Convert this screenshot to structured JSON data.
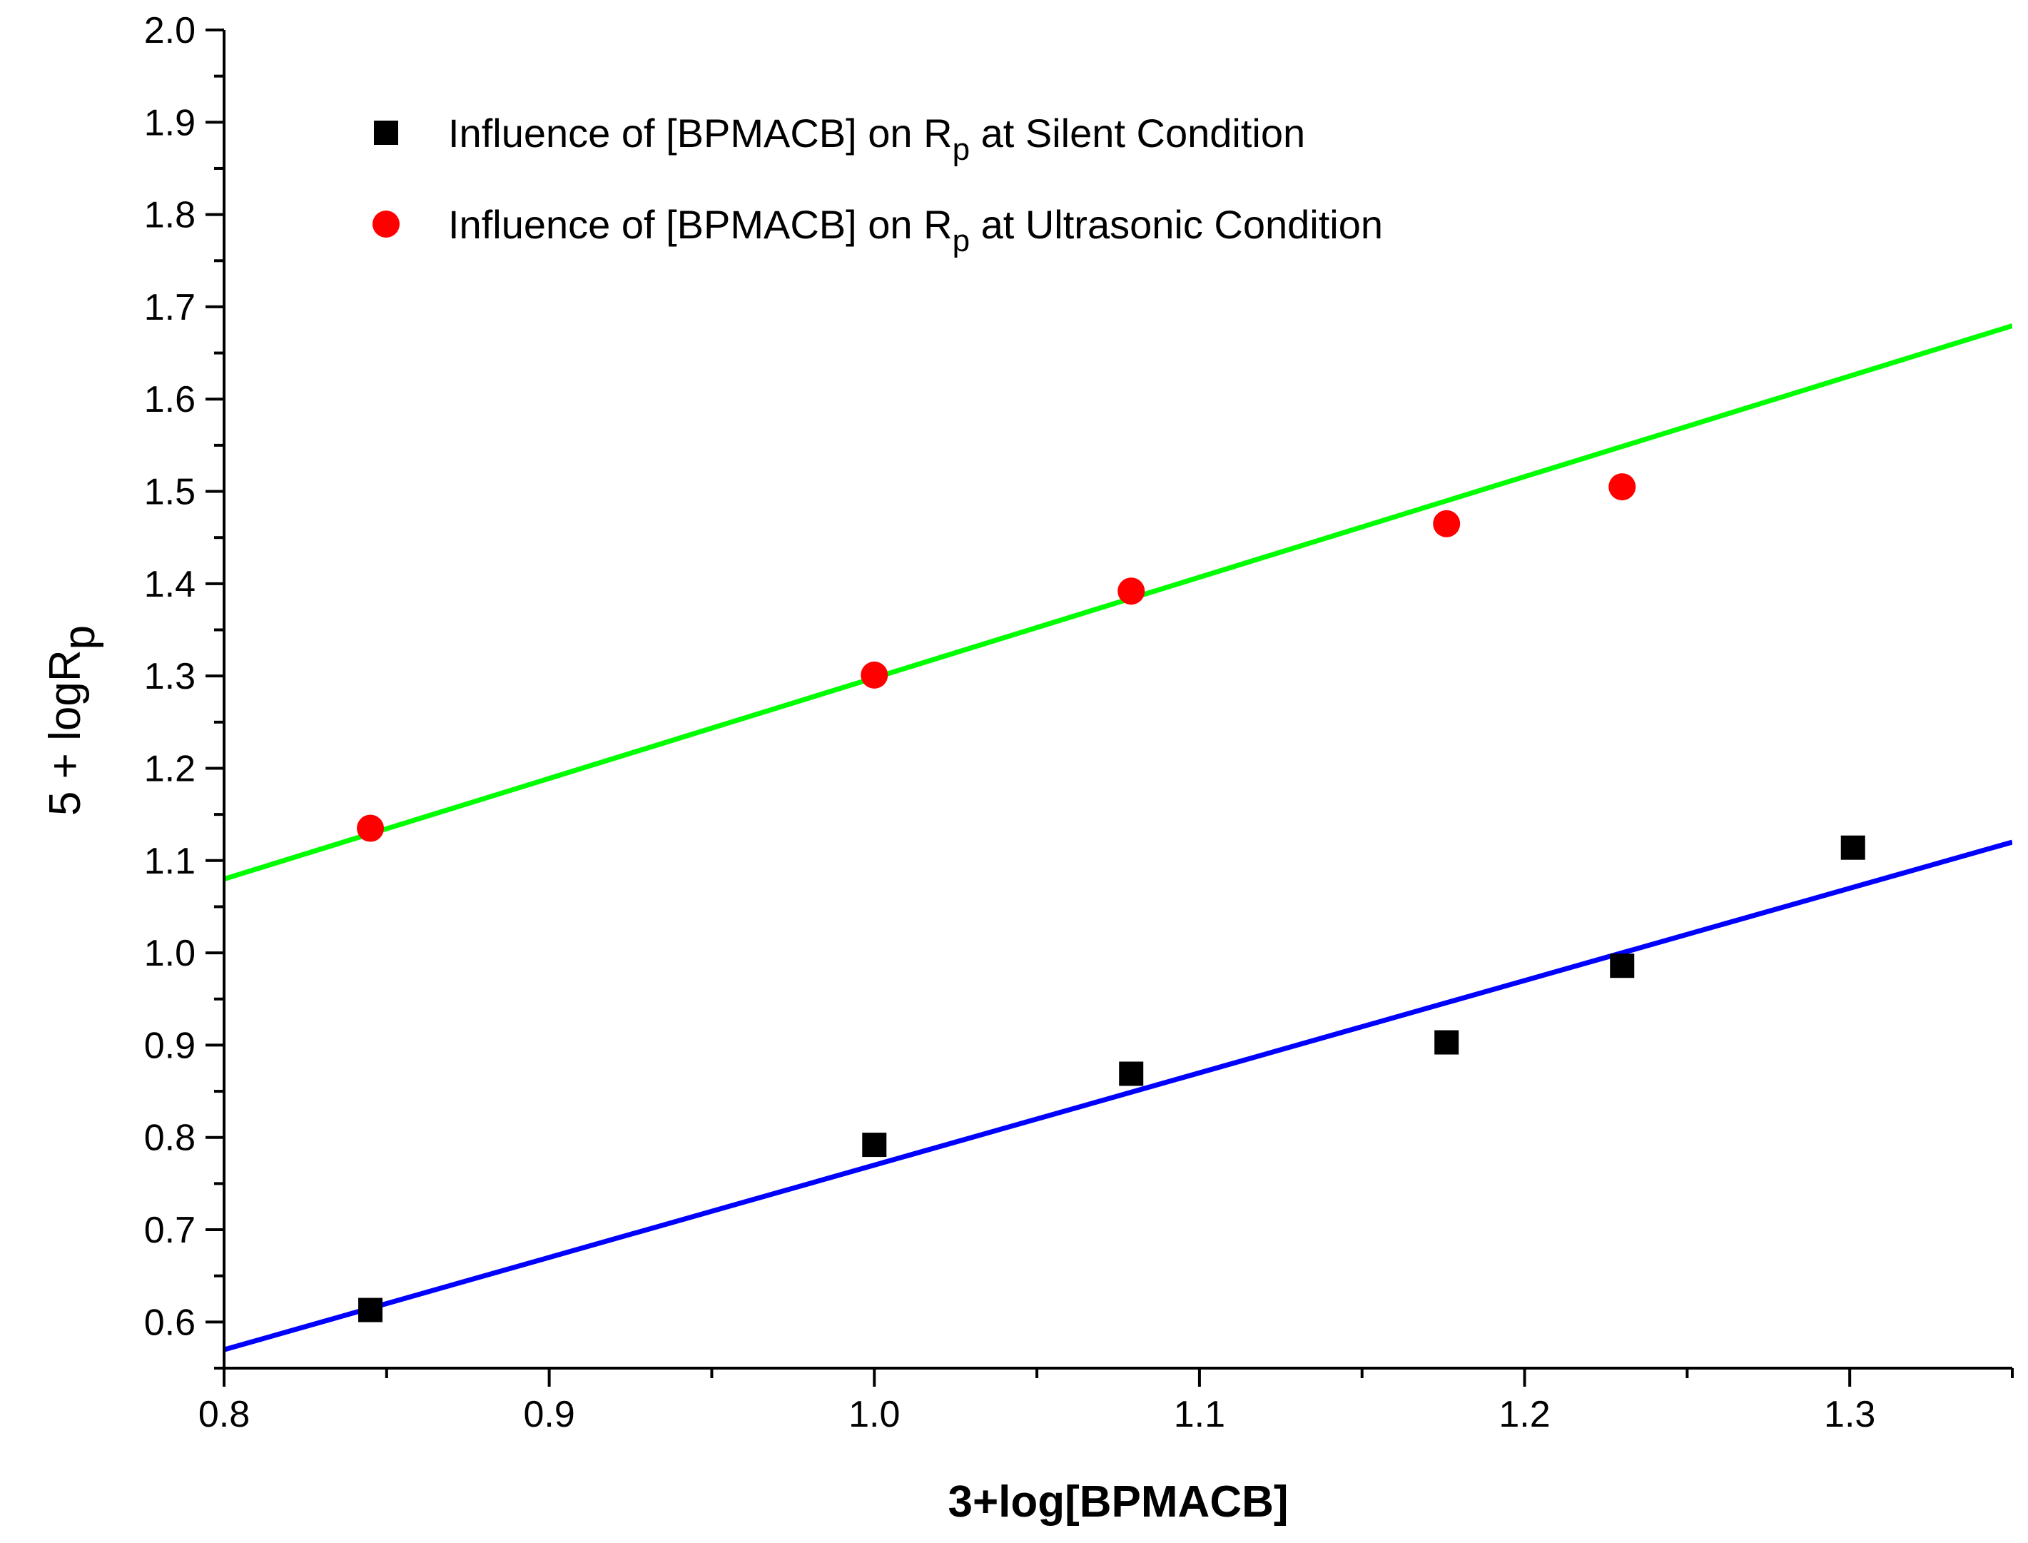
{
  "chart_data": {
    "type": "scatter",
    "xlabel": "3+log[BPMACB]",
    "ylabel": {
      "prefix": "5 + logR",
      "subscript": "p"
    },
    "xlim": [
      0.8,
      1.35
    ],
    "ylim": [
      0.55,
      2.0
    ],
    "x_ticks": [
      "0.8",
      "0.9",
      "1.0",
      "1.1",
      "1.2",
      "1.3"
    ],
    "x_tick_values": [
      0.8,
      0.9,
      1.0,
      1.1,
      1.2,
      1.3
    ],
    "y_ticks": [
      "0.6",
      "0.7",
      "0.8",
      "0.9",
      "1.0",
      "1.1",
      "1.2",
      "1.3",
      "1.4",
      "1.5",
      "1.6",
      "1.7",
      "1.8",
      "1.9",
      "2.0"
    ],
    "y_tick_values": [
      0.6,
      0.7,
      0.8,
      0.9,
      1.0,
      1.1,
      1.2,
      1.3,
      1.4,
      1.5,
      1.6,
      1.7,
      1.8,
      1.9,
      2.0
    ],
    "grid": false,
    "legend_position": "top-left",
    "series": [
      {
        "name": "Influence of [BPMACB] on Rp at Silent Condition",
        "legend_prefix": "Influence of [BPMACB] on R",
        "legend_sub": "p",
        "legend_suffix": " at Silent Condition",
        "marker": "square",
        "color": "#000000",
        "x": [
          0.845,
          1.0,
          1.079,
          1.176,
          1.23,
          1.301
        ],
        "y": [
          0.613,
          0.792,
          0.869,
          0.903,
          0.986,
          1.114
        ],
        "fit": {
          "color": "#0000ff",
          "slope": 1.0,
          "intercept": -0.23,
          "x_range": [
            0.8,
            1.35
          ]
        }
      },
      {
        "name": "Influence of [BPMACB] on Rp at Ultrasonic Condition",
        "legend_prefix": "Influence of [BPMACB] on R",
        "legend_sub": "p",
        "legend_suffix": " at Ultrasonic Condition",
        "marker": "circle",
        "color": "#ff0000",
        "x": [
          0.845,
          1.0,
          1.079,
          1.176,
          1.23
        ],
        "y": [
          1.135,
          1.301,
          1.392,
          1.465,
          1.505
        ],
        "fit": {
          "color": "#00ff00",
          "slope": 1.09,
          "intercept": 0.208,
          "x_range": [
            0.8,
            1.35
          ]
        }
      }
    ]
  }
}
